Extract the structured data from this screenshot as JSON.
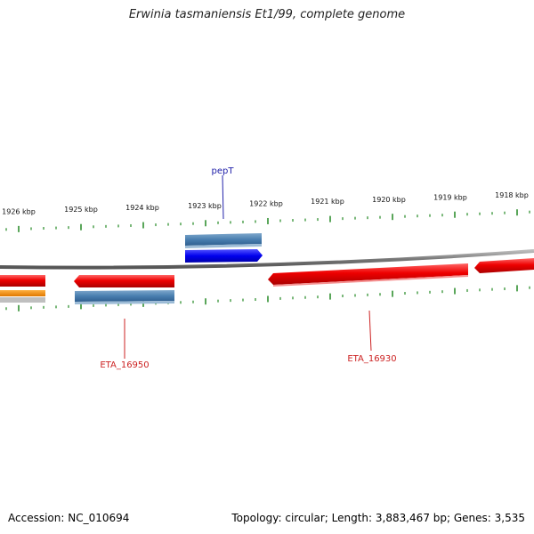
{
  "title": "Erwinia tasmaniensis Et1/99, complete genome",
  "footer": {
    "accession": "Accession: NC_010694",
    "summary": "Topology: circular; Length: 3,883,467 bp; Genes: 3,535"
  },
  "scale": {
    "unit": "kbp",
    "labels": [
      "1926 kbp",
      "1925 kbp",
      "1924 kbp",
      "1923 kbp",
      "1922 kbp",
      "1921 kbp",
      "1920 kbp",
      "1919 kbp",
      "1918 kbp"
    ]
  },
  "gene_labels": [
    {
      "name": "pepT",
      "color": "#2222aa"
    },
    {
      "name": "ETA_16950",
      "color": "#cc2222"
    },
    {
      "name": "ETA_16930",
      "color": "#cc2222"
    }
  ],
  "colors": {
    "cds": "#ee1111",
    "gene_strand": "#1111ee",
    "feature_blue": "#4a7fb0",
    "ticks": "#228822",
    "backbone": "#888888",
    "orange": "#f08c00"
  }
}
